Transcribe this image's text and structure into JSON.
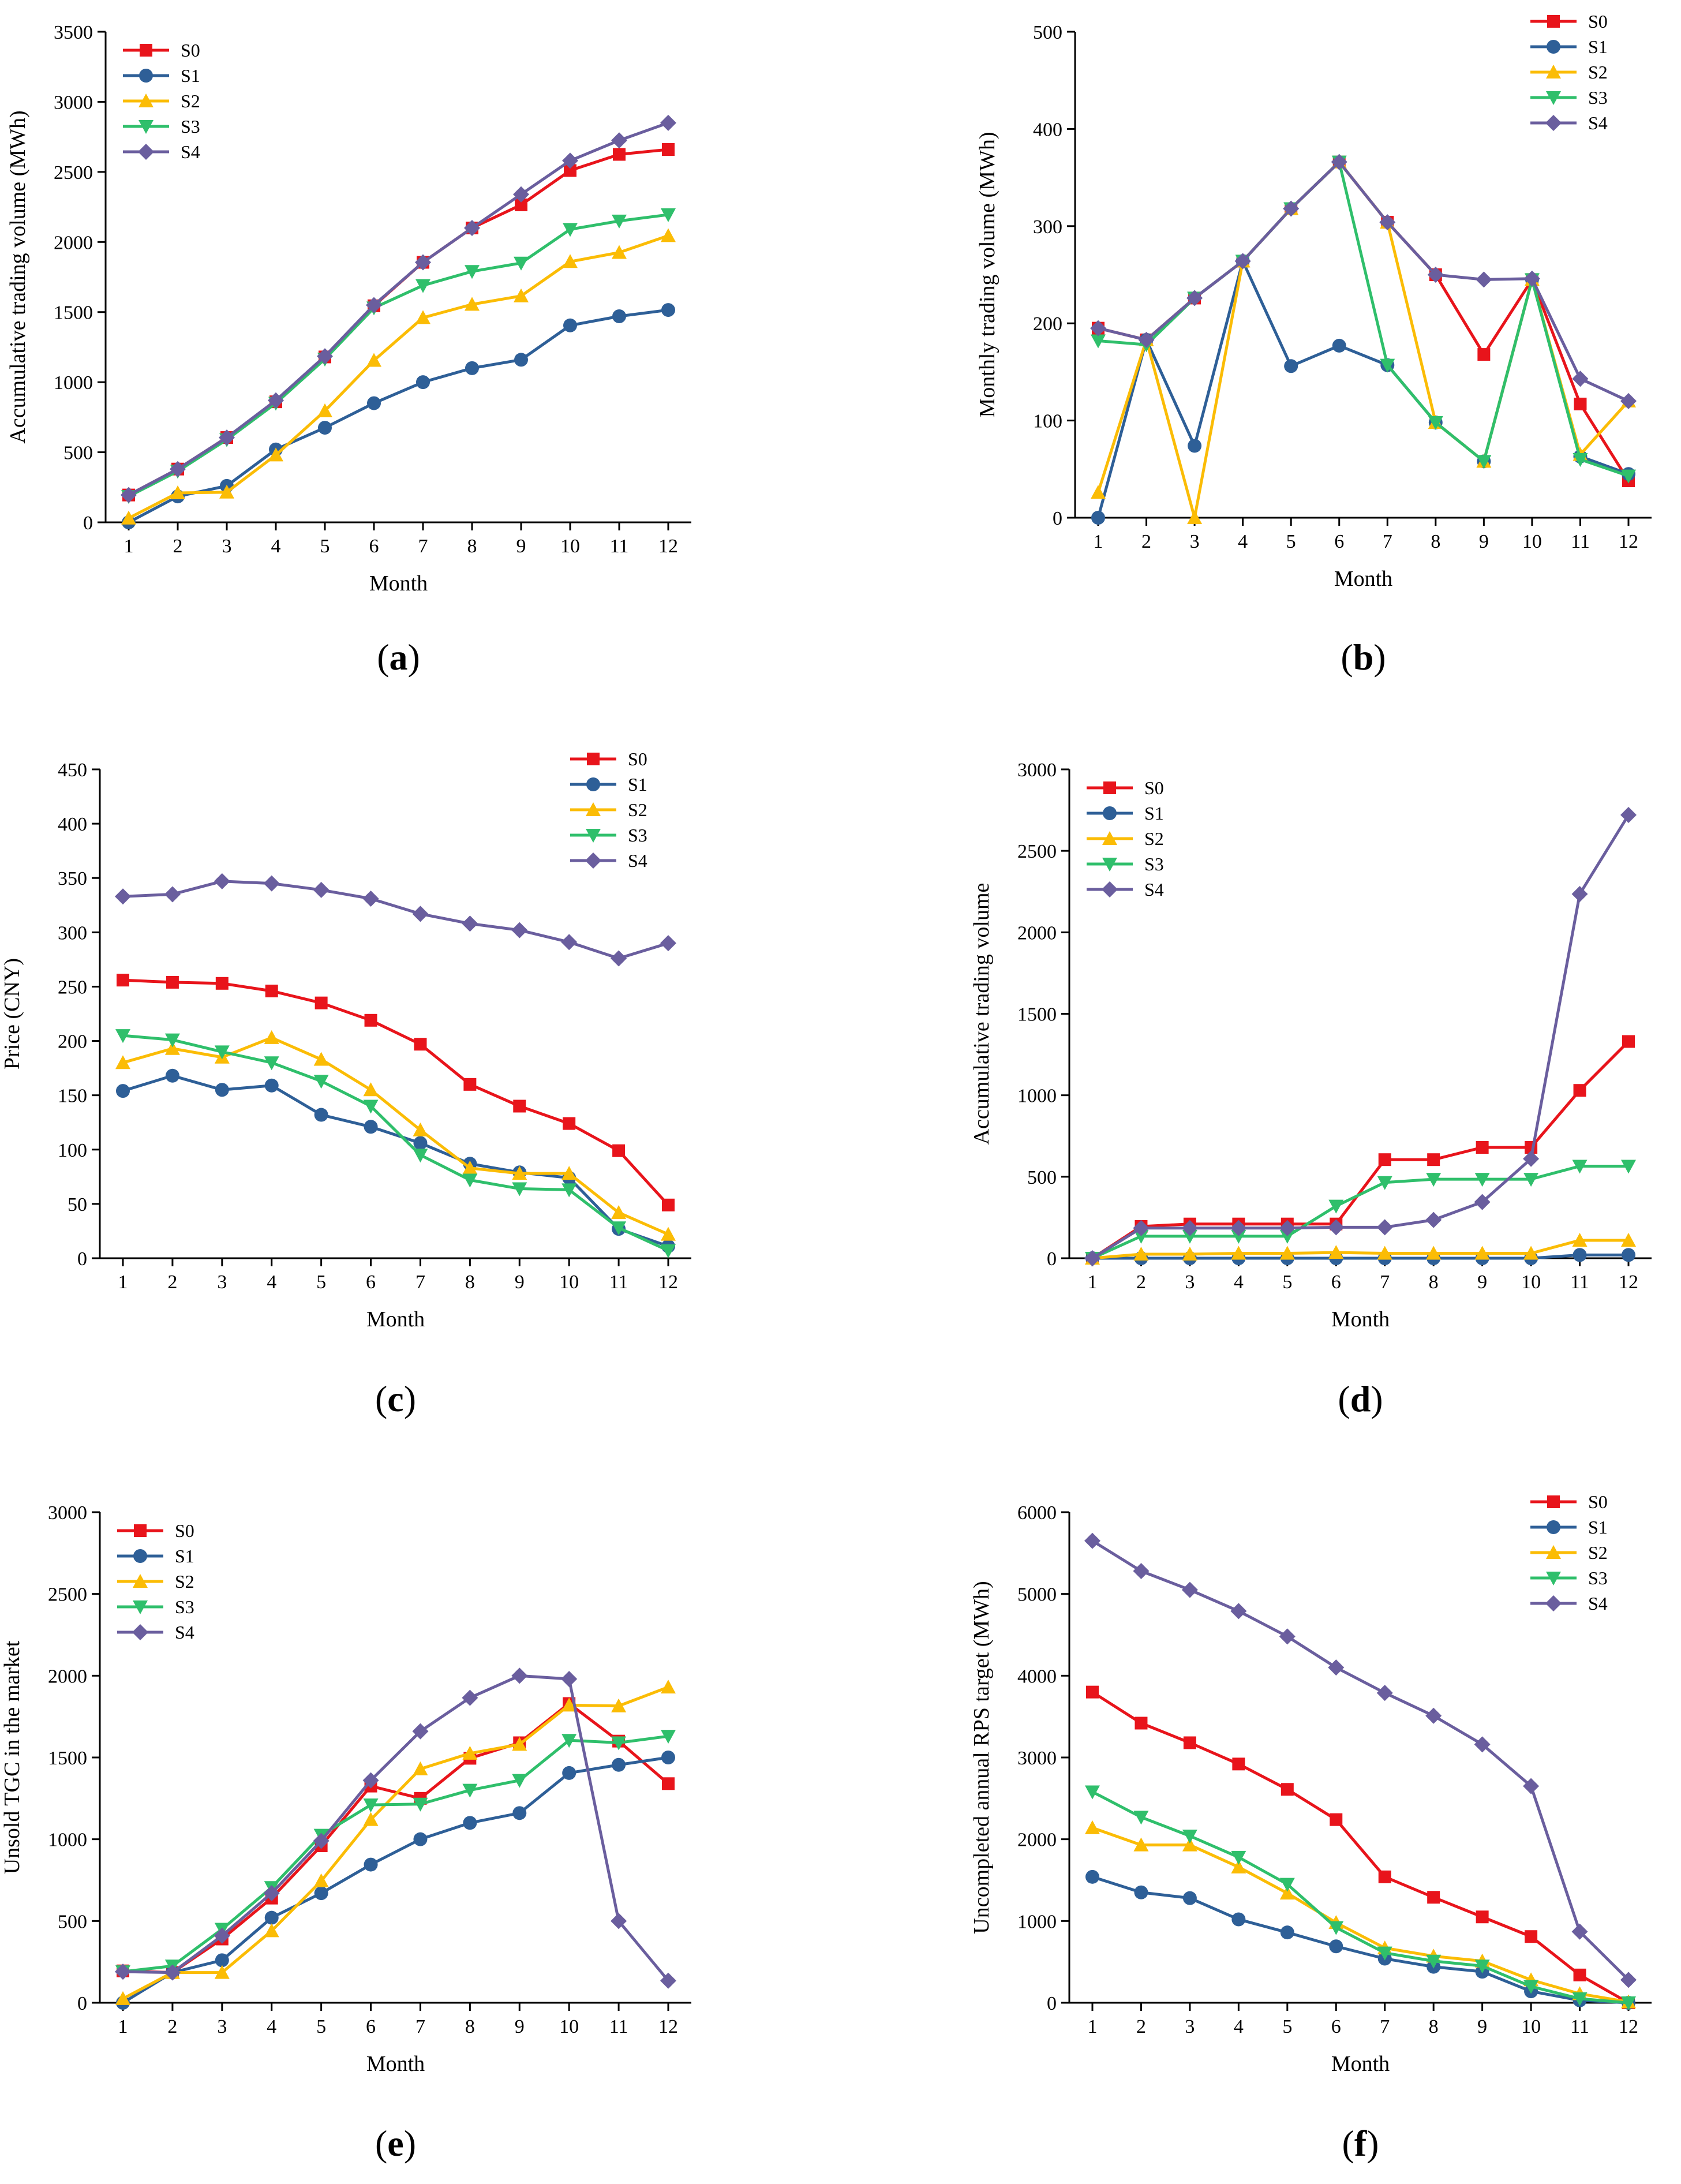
{
  "colors": {
    "S0": "#e8141b",
    "S1": "#2e5f97",
    "S2": "#fbbc05",
    "S3": "#2fbf6b",
    "S4": "#6a5e9e"
  },
  "chart_data": [
    {
      "id": "a",
      "type": "line",
      "caption_letter": "a",
      "xlabel": "Month",
      "ylabel": "Accumulative trading volume (MWh)",
      "x": [
        1,
        2,
        3,
        4,
        5,
        6,
        7,
        8,
        9,
        10,
        11,
        12
      ],
      "xticks": [
        1,
        2,
        3,
        4,
        5,
        6,
        7,
        8,
        9,
        10,
        11,
        12
      ],
      "ylim": [
        0,
        3500
      ],
      "yticks": [
        0,
        500,
        1000,
        1500,
        2000,
        2500,
        3000,
        3500
      ],
      "legend_position": "top-left",
      "series": [
        {
          "name": "S0",
          "marker": "square",
          "values": [
            195,
            380,
            605,
            860,
            1180,
            1545,
            1855,
            2100,
            2265,
            2510,
            2625,
            2660
          ]
        },
        {
          "name": "S1",
          "marker": "circle",
          "values": [
            0,
            185,
            260,
            520,
            675,
            850,
            1000,
            1100,
            1160,
            1405,
            1470,
            1515
          ]
        },
        {
          "name": "S2",
          "marker": "triangle-up",
          "values": [
            30,
            210,
            215,
            480,
            795,
            1155,
            1460,
            1555,
            1615,
            1860,
            1925,
            2045
          ]
        },
        {
          "name": "S3",
          "marker": "triangle-down",
          "values": [
            185,
            365,
            590,
            850,
            1165,
            1530,
            1690,
            1790,
            1850,
            2090,
            2150,
            2195
          ]
        },
        {
          "name": "S4",
          "marker": "diamond",
          "values": [
            195,
            380,
            605,
            870,
            1185,
            1550,
            1855,
            2100,
            2340,
            2580,
            2725,
            2850
          ]
        }
      ]
    },
    {
      "id": "b",
      "type": "line",
      "caption_letter": "b",
      "xlabel": "Month",
      "ylabel": "Monthly trading volume (MWh)",
      "x": [
        1,
        2,
        3,
        4,
        5,
        6,
        7,
        8,
        9,
        10,
        11,
        12
      ],
      "xticks": [
        1,
        2,
        3,
        4,
        5,
        6,
        7,
        8,
        9,
        10,
        11,
        12
      ],
      "ylim": [
        0,
        500
      ],
      "yticks": [
        0,
        100,
        200,
        300,
        400,
        500
      ],
      "legend_position": "top-right",
      "series": [
        {
          "name": "S0",
          "marker": "square",
          "values": [
            195,
            183,
            226,
            264,
            318,
            366,
            304,
            250,
            168,
            245,
            117,
            38
          ]
        },
        {
          "name": "S1",
          "marker": "circle",
          "values": [
            0,
            183,
            74,
            264,
            156,
            177,
            157,
            98,
            58,
            245,
            63,
            45
          ]
        },
        {
          "name": "S2",
          "marker": "triangle-up",
          "values": [
            26,
            183,
            0,
            264,
            318,
            366,
            304,
            98,
            58,
            245,
            65,
            120
          ]
        },
        {
          "name": "S3",
          "marker": "triangle-down",
          "values": [
            182,
            178,
            226,
            264,
            318,
            366,
            157,
            98,
            58,
            245,
            60,
            43
          ]
        },
        {
          "name": "S4",
          "marker": "diamond",
          "values": [
            195,
            183,
            226,
            264,
            318,
            366,
            304,
            250,
            245,
            246,
            143,
            120
          ]
        }
      ]
    },
    {
      "id": "c",
      "type": "line",
      "caption_letter": "c",
      "xlabel": "Month",
      "ylabel": "Price (CNY)",
      "x": [
        1,
        2,
        3,
        4,
        5,
        6,
        7,
        8,
        9,
        10,
        11,
        12
      ],
      "xticks": [
        1,
        2,
        3,
        4,
        5,
        6,
        7,
        8,
        9,
        10,
        11,
        12
      ],
      "ylim": [
        0,
        450
      ],
      "yticks": [
        0,
        50,
        100,
        150,
        200,
        250,
        300,
        350,
        400,
        450
      ],
      "legend_position": "top-right",
      "series": [
        {
          "name": "S0",
          "marker": "square",
          "values": [
            256,
            254,
            253,
            246,
            235,
            219,
            197,
            160,
            140,
            124,
            99,
            49
          ]
        },
        {
          "name": "S1",
          "marker": "circle",
          "values": [
            154,
            168,
            155,
            159,
            132,
            121,
            106,
            87,
            79,
            74,
            27,
            11
          ]
        },
        {
          "name": "S2",
          "marker": "triangle-up",
          "values": [
            180,
            193,
            185,
            203,
            183,
            155,
            118,
            83,
            78,
            78,
            42,
            22
          ]
        },
        {
          "name": "S3",
          "marker": "triangle-down",
          "values": [
            205,
            201,
            190,
            180,
            163,
            140,
            95,
            72,
            64,
            63,
            28,
            7
          ]
        },
        {
          "name": "S4",
          "marker": "diamond",
          "values": [
            333,
            335,
            347,
            345,
            339,
            331,
            317,
            308,
            302,
            291,
            276,
            290
          ]
        }
      ]
    },
    {
      "id": "d",
      "type": "line",
      "caption_letter": "d",
      "xlabel": "Month",
      "ylabel": "Accumulative trading volume",
      "x": [
        1,
        2,
        3,
        4,
        5,
        6,
        7,
        8,
        9,
        10,
        11,
        12
      ],
      "xticks": [
        1,
        2,
        3,
        4,
        5,
        6,
        7,
        8,
        9,
        10,
        11,
        12
      ],
      "ylim": [
        0,
        3000
      ],
      "yticks": [
        0,
        500,
        1000,
        1500,
        2000,
        2500,
        3000
      ],
      "legend_position": "top-left",
      "series": [
        {
          "name": "S0",
          "marker": "square",
          "values": [
            0,
            195,
            210,
            210,
            210,
            210,
            605,
            605,
            680,
            680,
            1030,
            1330
          ]
        },
        {
          "name": "S1",
          "marker": "circle",
          "values": [
            0,
            0,
            0,
            0,
            0,
            0,
            0,
            0,
            0,
            0,
            20,
            20
          ]
        },
        {
          "name": "S2",
          "marker": "triangle-up",
          "values": [
            0,
            25,
            25,
            30,
            30,
            35,
            30,
            30,
            30,
            30,
            110,
            110
          ]
        },
        {
          "name": "S3",
          "marker": "triangle-down",
          "values": [
            0,
            135,
            135,
            135,
            135,
            320,
            465,
            485,
            485,
            485,
            565,
            565
          ]
        },
        {
          "name": "S4",
          "marker": "diamond",
          "values": [
            0,
            185,
            185,
            185,
            185,
            190,
            190,
            235,
            345,
            610,
            2235,
            2720
          ]
        }
      ]
    },
    {
      "id": "e",
      "type": "line",
      "caption_letter": "e",
      "xlabel": "Month",
      "ylabel": "Unsold TGC in the market",
      "x": [
        1,
        2,
        3,
        4,
        5,
        6,
        7,
        8,
        9,
        10,
        11,
        12
      ],
      "xticks": [
        1,
        2,
        3,
        4,
        5,
        6,
        7,
        8,
        9,
        10,
        11,
        12
      ],
      "ylim": [
        0,
        3000
      ],
      "yticks": [
        0,
        500,
        1000,
        1500,
        2000,
        2500,
        3000
      ],
      "legend_position": "top-left",
      "series": [
        {
          "name": "S0",
          "marker": "square",
          "values": [
            195,
            185,
            390,
            640,
            960,
            1325,
            1250,
            1495,
            1590,
            1830,
            1600,
            1340
          ]
        },
        {
          "name": "S1",
          "marker": "circle",
          "values": [
            0,
            185,
            260,
            520,
            670,
            845,
            1000,
            1100,
            1160,
            1405,
            1455,
            1500
          ]
        },
        {
          "name": "S2",
          "marker": "triangle-up",
          "values": [
            25,
            185,
            185,
            440,
            745,
            1120,
            1430,
            1525,
            1580,
            1820,
            1815,
            1930
          ]
        },
        {
          "name": "S3",
          "marker": "triangle-down",
          "values": [
            190,
            225,
            450,
            705,
            1025,
            1210,
            1215,
            1300,
            1360,
            1605,
            1590,
            1630
          ]
        },
        {
          "name": "S4",
          "marker": "diamond",
          "values": [
            190,
            185,
            410,
            670,
            990,
            1360,
            1660,
            1865,
            2000,
            1980,
            500,
            135
          ]
        }
      ]
    },
    {
      "id": "f",
      "type": "line",
      "caption_letter": "f",
      "xlabel": "Month",
      "ylabel": "Uncompleted annual RPS target (MWh)",
      "x": [
        1,
        2,
        3,
        4,
        5,
        6,
        7,
        8,
        9,
        10,
        11,
        12
      ],
      "xticks": [
        1,
        2,
        3,
        4,
        5,
        6,
        7,
        8,
        9,
        10,
        11,
        12
      ],
      "ylim": [
        0,
        6000
      ],
      "yticks": [
        0,
        1000,
        2000,
        3000,
        4000,
        5000,
        6000
      ],
      "legend_position": "top-right",
      "series": [
        {
          "name": "S0",
          "marker": "square",
          "values": [
            3800,
            3420,
            3180,
            2920,
            2610,
            2240,
            1540,
            1290,
            1050,
            810,
            340,
            0
          ]
        },
        {
          "name": "S1",
          "marker": "circle",
          "values": [
            1540,
            1350,
            1280,
            1020,
            860,
            690,
            540,
            440,
            380,
            140,
            30,
            0
          ]
        },
        {
          "name": "S2",
          "marker": "triangle-up",
          "values": [
            2140,
            1930,
            1930,
            1660,
            1340,
            980,
            670,
            570,
            510,
            280,
            110,
            10
          ]
        },
        {
          "name": "S3",
          "marker": "triangle-down",
          "values": [
            2580,
            2270,
            2040,
            1780,
            1450,
            920,
            610,
            510,
            450,
            200,
            50,
            0
          ]
        },
        {
          "name": "S4",
          "marker": "diamond",
          "values": [
            5650,
            5280,
            5050,
            4790,
            4480,
            4100,
            3790,
            3510,
            3160,
            2650,
            870,
            280
          ]
        }
      ]
    }
  ]
}
